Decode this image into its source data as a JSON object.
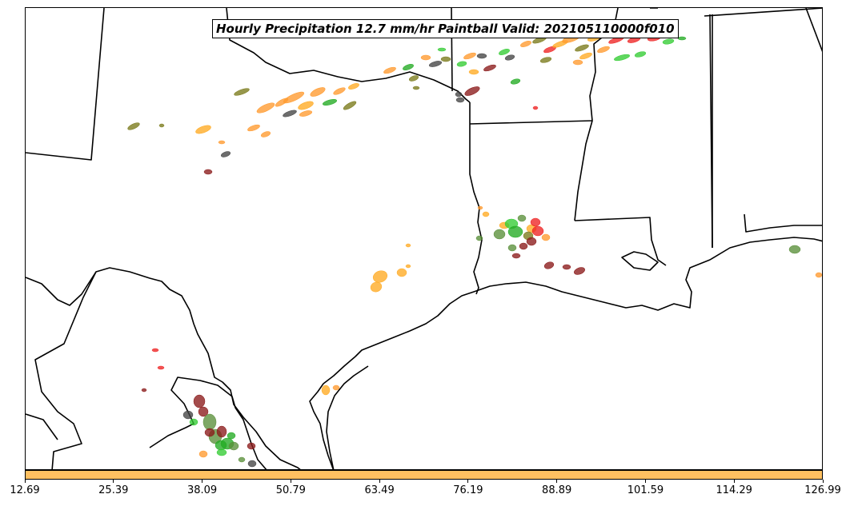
{
  "title": "Hourly Precipitation 12.7 mm/hr Paintball Valid: 202105110000f010",
  "colorbar": {
    "color": "#ffc061",
    "min": 12.69,
    "max": 126.99,
    "tick_labels": [
      "12.69",
      "25.39",
      "38.09",
      "50.79",
      "63.49",
      "76.19",
      "88.89",
      "101.59",
      "114.29",
      "126.99"
    ]
  },
  "member_colors": [
    "#ff9a2e",
    "#ffaa22",
    "#ee2222",
    "#22aa22",
    "#5a8f3a",
    "#8b1a1a",
    "#7a7a1a",
    "#444444",
    "#33cc33",
    "#cc5500"
  ]
}
